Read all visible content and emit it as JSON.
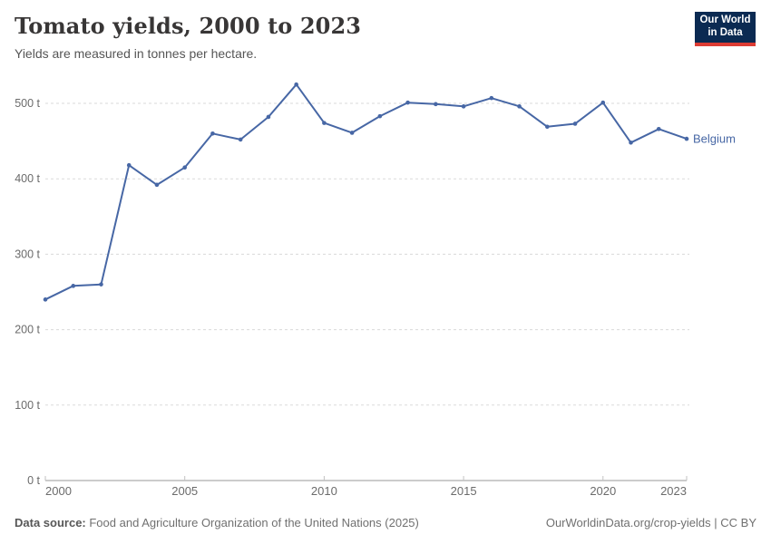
{
  "header": {
    "title": "Tomato yields, 2000 to 2023",
    "subtitle": "Yields are measured in tonnes per hectare.",
    "logo": {
      "line1": "Our World",
      "line2": "in Data"
    }
  },
  "footer": {
    "source_label": "Data source:",
    "source_text": " Food and Agriculture Organization of the United Nations (2025)",
    "rights": "OurWorldinData.org/crop-yields | CC BY"
  },
  "chart_data": {
    "type": "line",
    "title": "Tomato yields, 2000 to 2023",
    "subtitle": "Yields are measured in tonnes per hectare.",
    "unit": "t",
    "unit_suffix": " t",
    "x": [
      2000,
      2001,
      2002,
      2003,
      2004,
      2005,
      2006,
      2007,
      2008,
      2009,
      2010,
      2011,
      2012,
      2013,
      2014,
      2015,
      2016,
      2017,
      2018,
      2019,
      2020,
      2021,
      2022,
      2023
    ],
    "series": [
      {
        "name": "Belgium",
        "color": "#4767A5",
        "values": [
          240,
          258,
          260,
          418,
          392,
          415,
          460,
          452,
          482,
          525,
          474,
          461,
          483,
          501,
          499,
          496,
          507,
          496,
          469,
          473,
          501,
          448,
          466,
          453
        ]
      }
    ],
    "xticks": [
      2000,
      2005,
      2010,
      2015,
      2020,
      2023
    ],
    "yticks": [
      0,
      100,
      200,
      300,
      400,
      500
    ],
    "ylim": [
      0,
      550
    ],
    "grid": "horizontal-dashed",
    "legend_position": "end-of-line"
  },
  "colors": {
    "accent": "#4767A5",
    "gridline": "#dadada",
    "axis_line": "#9a9a9a",
    "tick_mark": "#c2c2c2",
    "axis_label": "#6b6b6b",
    "logo_bg": "#0b2a52",
    "logo_bar": "#dd3c34"
  }
}
